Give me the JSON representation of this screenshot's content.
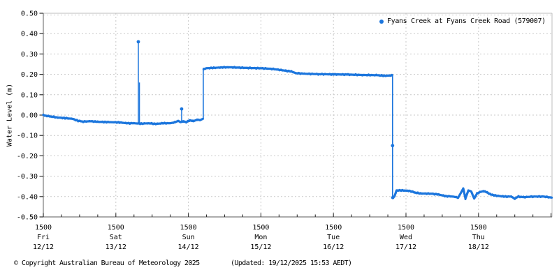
{
  "footer": {
    "copyright": "© Copyright Australian Bureau of Meteorology 2025",
    "updated": "(Updated: 19/12/2025 15:53 AEDT)"
  },
  "colors": {
    "series": "#1c76dd",
    "grid": "#c9c9c9",
    "axis": "#7a7a7a",
    "border": "#bcbcbc",
    "tick": "#303030",
    "text": "#000000",
    "background": "#ffffff"
  },
  "chart_data": {
    "type": "scatter",
    "title": "",
    "legend_position": "top-right",
    "grid": true,
    "y_axis": {
      "label": "Water Level (m)",
      "min": -0.5,
      "max": 0.5,
      "step": 0.1,
      "tick_values": [
        0.5,
        0.4,
        0.3,
        0.2,
        0.1,
        0.0,
        -0.1,
        -0.2,
        -0.3,
        -0.4,
        -0.5
      ],
      "tick_labels": [
        "0.50",
        "0.40",
        "0.30",
        "0.20",
        "0.10",
        "0.00",
        "-0.10",
        "-0.20",
        "-0.30",
        "-0.40",
        "-0.50"
      ]
    },
    "x_axis": {
      "time_label": "1500",
      "minor_tick_hours": 6,
      "span_days": 7.01,
      "days": [
        {
          "t": 0,
          "day": "Fri",
          "date": "12/12"
        },
        {
          "t": 1,
          "day": "Sat",
          "date": "13/12"
        },
        {
          "t": 2,
          "day": "Sun",
          "date": "14/12"
        },
        {
          "t": 3,
          "day": "Mon",
          "date": "15/12"
        },
        {
          "t": 4,
          "day": "Tue",
          "date": "16/12"
        },
        {
          "t": 5,
          "day": "Wed",
          "date": "17/12"
        },
        {
          "t": 6,
          "day": "Thu",
          "date": "18/12"
        }
      ]
    },
    "series": [
      {
        "name": "Fyans Creek at Fyans Creek Road (579007)",
        "unit": "m",
        "marker": "dot",
        "segments": [
          {
            "kind": "trace",
            "points": [
              [
                0.0,
                0.0
              ],
              [
                0.05,
                -0.004
              ],
              [
                0.12,
                -0.008
              ],
              [
                0.2,
                -0.012
              ],
              [
                0.3,
                -0.015
              ],
              [
                0.4,
                -0.018
              ],
              [
                0.48,
                -0.028
              ],
              [
                0.55,
                -0.032
              ],
              [
                0.65,
                -0.03
              ],
              [
                0.75,
                -0.033
              ],
              [
                0.85,
                -0.034
              ],
              [
                0.95,
                -0.035
              ],
              [
                1.05,
                -0.036
              ],
              [
                1.15,
                -0.04
              ],
              [
                1.25,
                -0.04
              ],
              [
                1.35,
                -0.042
              ],
              [
                1.45,
                -0.04
              ],
              [
                1.55,
                -0.043
              ],
              [
                1.65,
                -0.04
              ],
              [
                1.75,
                -0.04
              ],
              [
                1.82,
                -0.035
              ],
              [
                1.86,
                -0.028
              ],
              [
                1.89,
                -0.035
              ],
              [
                1.93,
                -0.03
              ],
              [
                1.97,
                -0.035
              ],
              [
                2.02,
                -0.025
              ],
              [
                2.07,
                -0.03
              ],
              [
                2.12,
                -0.022
              ],
              [
                2.16,
                -0.025
              ],
              [
                2.2,
                -0.018
              ]
            ]
          },
          {
            "kind": "spike",
            "points": [
              [
                2.205,
                -0.018
              ],
              [
                2.205,
                0.225
              ]
            ]
          },
          {
            "kind": "trace",
            "points": [
              [
                2.21,
                0.225
              ],
              [
                2.25,
                0.23
              ],
              [
                2.35,
                0.232
              ],
              [
                2.45,
                0.234
              ],
              [
                2.55,
                0.235
              ],
              [
                2.7,
                0.233
              ],
              [
                2.85,
                0.231
              ],
              [
                3.0,
                0.23
              ],
              [
                3.15,
                0.227
              ],
              [
                3.3,
                0.22
              ],
              [
                3.42,
                0.214
              ],
              [
                3.48,
                0.206
              ],
              [
                3.6,
                0.203
              ],
              [
                3.8,
                0.201
              ],
              [
                4.0,
                0.2
              ],
              [
                4.2,
                0.199
              ],
              [
                4.4,
                0.197
              ],
              [
                4.6,
                0.196
              ],
              [
                4.7,
                0.193
              ],
              [
                4.81,
                0.195
              ]
            ]
          },
          {
            "kind": "spike",
            "points": [
              [
                4.815,
                0.195
              ],
              [
                4.815,
                -0.405
              ]
            ]
          },
          {
            "kind": "trace",
            "points": [
              [
                4.82,
                -0.405
              ],
              [
                4.84,
                -0.4
              ],
              [
                4.87,
                -0.37
              ],
              [
                4.95,
                -0.37
              ],
              [
                5.05,
                -0.372
              ],
              [
                5.12,
                -0.38
              ],
              [
                5.2,
                -0.385
              ],
              [
                5.35,
                -0.386
              ],
              [
                5.45,
                -0.39
              ],
              [
                5.55,
                -0.398
              ],
              [
                5.65,
                -0.4
              ],
              [
                5.72,
                -0.405
              ],
              [
                5.76,
                -0.38
              ],
              [
                5.79,
                -0.36
              ],
              [
                5.82,
                -0.41
              ],
              [
                5.86,
                -0.37
              ],
              [
                5.9,
                -0.375
              ],
              [
                5.94,
                -0.41
              ],
              [
                5.98,
                -0.385
              ],
              [
                6.02,
                -0.378
              ],
              [
                6.07,
                -0.373
              ],
              [
                6.12,
                -0.38
              ],
              [
                6.17,
                -0.39
              ],
              [
                6.25,
                -0.396
              ],
              [
                6.35,
                -0.4
              ],
              [
                6.45,
                -0.4
              ],
              [
                6.5,
                -0.41
              ],
              [
                6.55,
                -0.4
              ],
              [
                6.62,
                -0.403
              ],
              [
                6.75,
                -0.4
              ],
              [
                6.9,
                -0.4
              ],
              [
                7.01,
                -0.405
              ]
            ]
          }
        ],
        "spikes": [
          {
            "t": 1.31,
            "from": -0.04,
            "to": 0.36,
            "dot": true
          },
          {
            "t": 1.325,
            "from": -0.04,
            "to": 0.16,
            "dot": false
          },
          {
            "t": 1.907,
            "from": -0.035,
            "to": 0.03,
            "dot": true
          }
        ],
        "marker_dots": [
          [
            4.815,
            -0.15
          ],
          [
            4.818,
            -0.405
          ]
        ]
      }
    ]
  }
}
